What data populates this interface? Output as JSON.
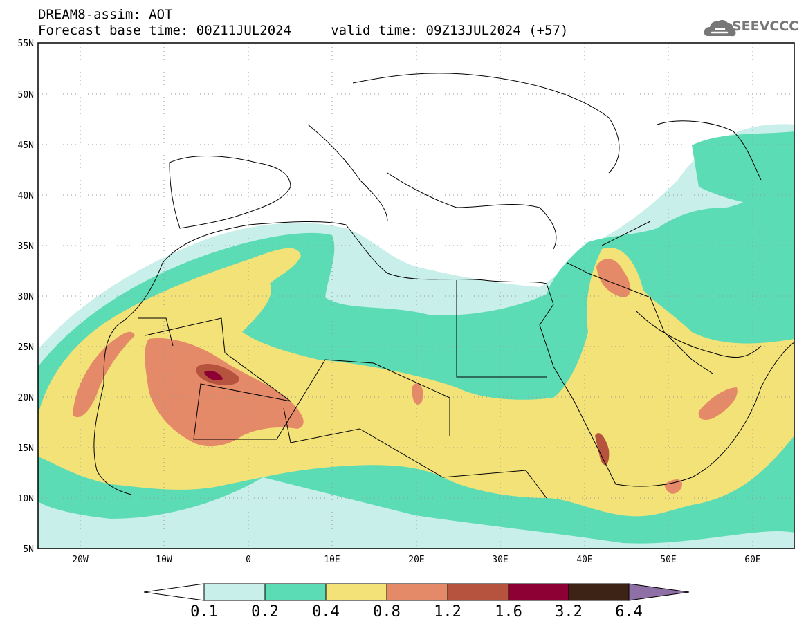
{
  "header": {
    "title_line1": "DREAM8-assim: AOT",
    "title_line2": "Forecast base time: 00Z11JUL2024     valid time: 09Z13JUL2024 (+57)"
  },
  "logo": {
    "text": "SEEVCCC",
    "icon": "cloud-icon"
  },
  "map": {
    "lat_labels": [
      "55N",
      "50N",
      "45N",
      "40N",
      "35N",
      "30N",
      "25N",
      "20N",
      "15N",
      "10N",
      "5N"
    ],
    "lon_labels": [
      "20W",
      "10W",
      "0",
      "10E",
      "20E",
      "30E",
      "40E",
      "50E",
      "60E"
    ],
    "colors": {
      "c0": "#c8efe9",
      "c1": "#5cdcb5",
      "c2": "#f2e277",
      "c3": "#e58a68",
      "c4": "#b5533e",
      "c5": "#8c0033",
      "c6": "#3d2316",
      "c7": "#8e6fa6"
    }
  },
  "colorbar": {
    "labels": [
      "0.1",
      "0.2",
      "0.4",
      "0.8",
      "1.2",
      "1.6",
      "3.2",
      "6.4"
    ],
    "colors": [
      "#c8efe9",
      "#5cdcb5",
      "#f2e277",
      "#e58a68",
      "#b5533e",
      "#8c0033",
      "#3d2316"
    ],
    "under_color": "#ffffff",
    "over_color": "#8e6fa6"
  }
}
